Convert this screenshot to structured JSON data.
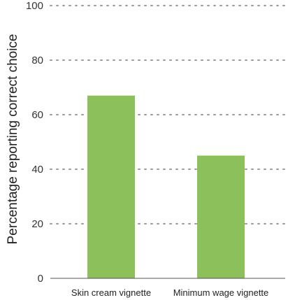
{
  "chart_data": {
    "type": "bar",
    "categories": [
      "Skin cream vignette",
      "Minimum wage vignette"
    ],
    "values": [
      67,
      45
    ],
    "title": "",
    "xlabel": "",
    "ylabel": "Percentage reporting correct choice",
    "ylim": [
      0,
      100
    ],
    "yticks": [
      0,
      20,
      40,
      60,
      80,
      100
    ],
    "grid": true,
    "bar_color": "#8cc05a"
  }
}
